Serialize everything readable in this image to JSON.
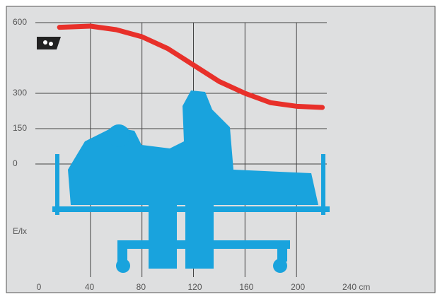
{
  "chart_data": {
    "type": "line",
    "y_label": "E/lx",
    "x": [
      16,
      40,
      60,
      80,
      100,
      120,
      140,
      160,
      180,
      200,
      220
    ],
    "series": [
      {
        "color": "#e8302a",
        "values": [
          580,
          585,
          570,
          540,
          490,
          420,
          350,
          300,
          260,
          245,
          240
        ]
      }
    ],
    "xlim": [
      0,
      240
    ],
    "xticks": [
      0,
      40,
      80,
      120,
      160,
      200,
      {
        "value": 240,
        "label": "240 cm"
      }
    ],
    "ylim": [
      -480,
      600
    ],
    "yticks": [
      0,
      150,
      300,
      600
    ],
    "grid": true
  }
}
